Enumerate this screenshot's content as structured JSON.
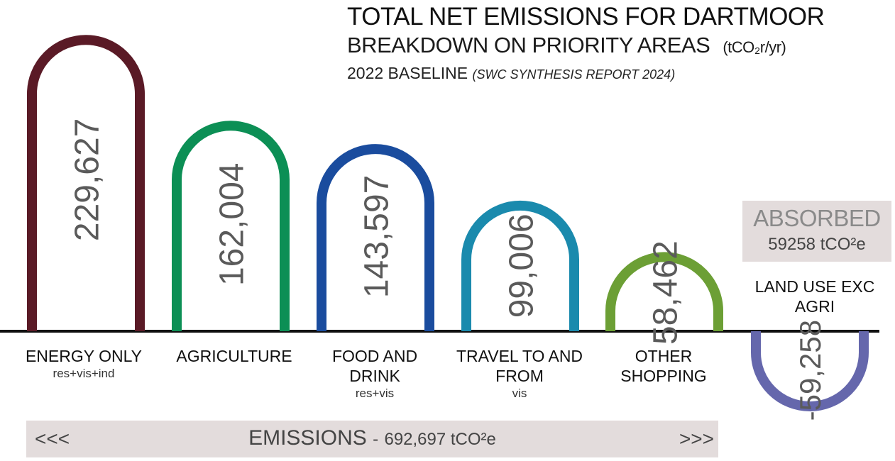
{
  "title": "TOTAL NET EMISSIONS FOR DARTMOOR",
  "subtitle": "BREAKDOWN ON PRIORITY AREAS",
  "subtitle_unit": "(tCO₂r/yr)",
  "baseline": "2022 BASELINE",
  "baseline_source": "(SWC SYNTHESIS REPORT 2024)",
  "absorbed": {
    "label": "ABSORBED",
    "value": "59258 tCO²e"
  },
  "land_use_label": "LAND USE EXC AGRI",
  "emissions": {
    "left_arrows": "<<<",
    "label": "EMISSIONS",
    "separator": "-",
    "value": "692,697 tCO²e",
    "right_arrows": ">>>"
  },
  "categories": [
    {
      "name": "ENERGY ONLY",
      "sub": "res+vis+ind"
    },
    {
      "name": "AGRICULTURE",
      "sub": ""
    },
    {
      "name": "FOOD AND DRINK",
      "sub": "res+vis"
    },
    {
      "name": "TRAVEL TO AND FROM",
      "sub": "vis"
    },
    {
      "name": "OTHER SHOPPING",
      "sub": ""
    }
  ],
  "chart_data": {
    "type": "bar",
    "categories": [
      "ENERGY ONLY",
      "AGRICULTURE",
      "FOOD AND DRINK",
      "TRAVEL TO AND FROM",
      "OTHER SHOPPING",
      "LAND USE EXC AGRI"
    ],
    "values": [
      229627,
      162004,
      143597,
      99006,
      58462,
      -59258
    ],
    "labels": [
      "229,627",
      "162,004",
      "143,597",
      "99,006",
      "58,462",
      "-59,258"
    ],
    "colors": [
      "#5a1a26",
      "#0c8f55",
      "#1a4c9e",
      "#1a8aad",
      "#6c9f35",
      "#6567ac"
    ]
  }
}
